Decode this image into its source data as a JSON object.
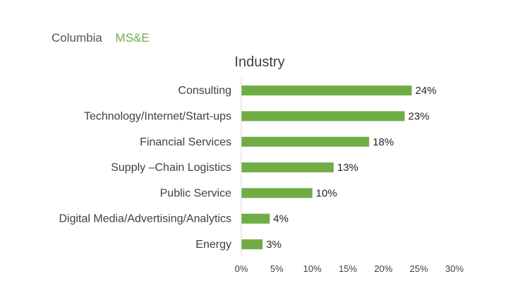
{
  "header": {
    "school": "Columbia",
    "program": "MS&E",
    "program_color": "#70ad47"
  },
  "chart_data": {
    "type": "bar",
    "orientation": "horizontal",
    "title": "Industry",
    "categories": [
      "Consulting",
      "Technology/Internet/Start-ups",
      "Financial Services",
      "Supply –Chain Logistics",
      "Public Service",
      "Digital Media/Advertising/Analytics",
      "Energy"
    ],
    "values": [
      24,
      23,
      18,
      13,
      10,
      4,
      3
    ],
    "value_labels": [
      "24%",
      "23%",
      "18%",
      "13%",
      "10%",
      "4%",
      "3%"
    ],
    "x_ticks": [
      "0%",
      "5%",
      "10%",
      "15%",
      "20%",
      "25%",
      "30%"
    ],
    "xlim": [
      0,
      30
    ],
    "bar_color": "#70ad47",
    "grid": false,
    "legend": "none"
  }
}
